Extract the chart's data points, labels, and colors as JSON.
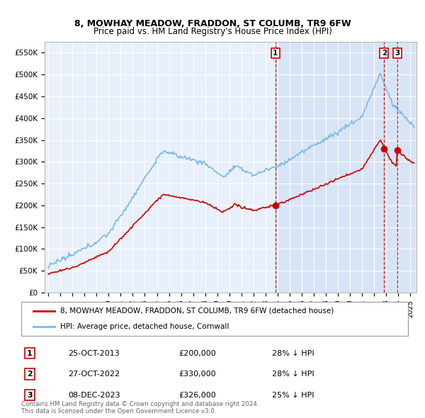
{
  "title": "8, MOWHAY MEADOW, FRADDON, ST COLUMB, TR9 6FW",
  "subtitle": "Price paid vs. HM Land Registry's House Price Index (HPI)",
  "hpi_label": "HPI: Average price, detached house, Cornwall",
  "property_label": "8, MOWHAY MEADOW, FRADDON, ST COLUMB, TR9 6FW (detached house)",
  "hpi_color": "#7ab8e8",
  "property_color": "#cc0000",
  "vline_color": "#cc0000",
  "background_color": "#e8f0fb",
  "grid_color": "#ffffff",
  "shade_color": "#c8daf5",
  "transactions": [
    {
      "id": 1,
      "date": 2013.82,
      "price": 200000,
      "label": "25-OCT-2013",
      "pct": "28%",
      "dir": "↓"
    },
    {
      "id": 2,
      "date": 2022.82,
      "price": 330000,
      "label": "27-OCT-2022",
      "pct": "28%",
      "dir": "↓"
    },
    {
      "id": 3,
      "date": 2023.92,
      "price": 326000,
      "label": "08-DEC-2023",
      "pct": "25%",
      "dir": "↓"
    }
  ],
  "footer1": "Contains HM Land Registry data © Crown copyright and database right 2024.",
  "footer2": "This data is licensed under the Open Government Licence v3.0.",
  "ylim": [
    0,
    575000
  ],
  "xlim_start": 1994.7,
  "xlim_end": 2025.5
}
